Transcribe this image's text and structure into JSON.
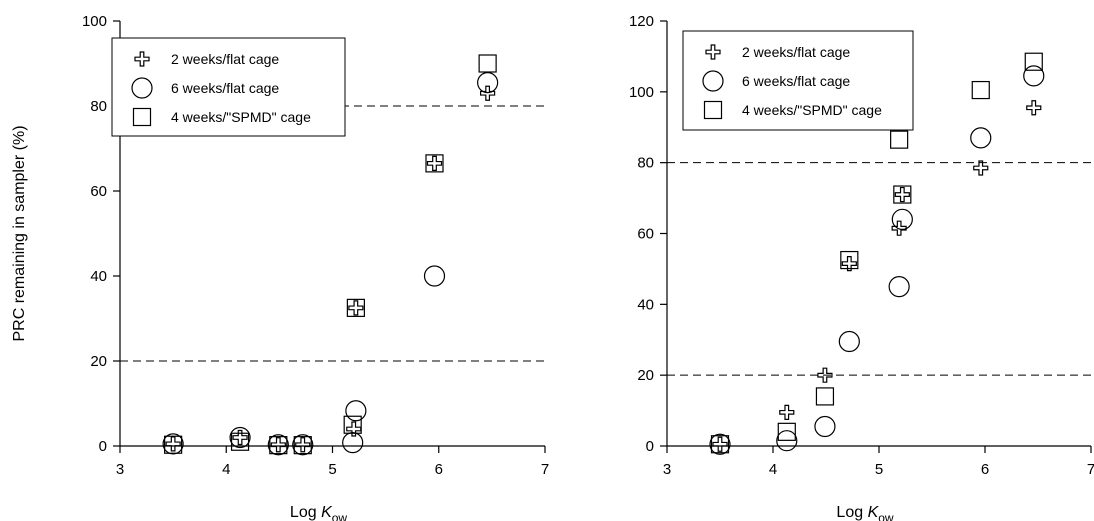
{
  "chart_data": [
    {
      "type": "scatter",
      "panel": "left",
      "xlabel": "Log K",
      "xlabel_sub": "ow",
      "ylabel": "PRC remaining in sampler (%)",
      "xlim": [
        3,
        7
      ],
      "ylim": [
        0,
        100
      ],
      "xticks": [
        3,
        4,
        5,
        6,
        7
      ],
      "yticks": [
        0,
        20,
        40,
        60,
        80,
        100
      ],
      "reference_lines": [
        20,
        80
      ],
      "legend_position": "top-left",
      "series": [
        {
          "name": "2 weeks/flat cage",
          "marker": "cross",
          "points": [
            [
              3.5,
              0.5
            ],
            [
              4.13,
              2
            ],
            [
              4.49,
              0.3
            ],
            [
              4.72,
              0.3
            ],
            [
              5.2,
              4
            ],
            [
              5.22,
              32.5
            ],
            [
              5.96,
              66.5
            ],
            [
              6.46,
              83
            ]
          ]
        },
        {
          "name": "6 weeks/flat cage",
          "marker": "circle",
          "points": [
            [
              3.5,
              0.5
            ],
            [
              4.13,
              2
            ],
            [
              4.49,
              0.3
            ],
            [
              4.72,
              0.3
            ],
            [
              5.19,
              0.8
            ],
            [
              5.22,
              8.3
            ],
            [
              5.96,
              40
            ],
            [
              6.46,
              85.5
            ]
          ]
        },
        {
          "name": "4 weeks/\"SPMD\" cage",
          "marker": "square",
          "points": [
            [
              3.5,
              0.3
            ],
            [
              4.13,
              1
            ],
            [
              4.49,
              0.2
            ],
            [
              4.72,
              0.2
            ],
            [
              5.19,
              5
            ],
            [
              5.22,
              32.5
            ],
            [
              5.96,
              66.5
            ],
            [
              6.46,
              90
            ]
          ]
        }
      ]
    },
    {
      "type": "scatter",
      "panel": "right",
      "xlabel": "Log K",
      "xlabel_sub": "ow",
      "ylabel": "",
      "xlim": [
        3,
        7
      ],
      "ylim": [
        0,
        120
      ],
      "xticks": [
        3,
        4,
        5,
        6,
        7
      ],
      "yticks": [
        0,
        20,
        40,
        60,
        80,
        100,
        120
      ],
      "reference_lines": [
        20,
        80
      ],
      "legend_position": "top-left",
      "series": [
        {
          "name": "2 weeks/flat cage",
          "marker": "cross",
          "points": [
            [
              3.5,
              0.5
            ],
            [
              4.13,
              9.5
            ],
            [
              4.49,
              20
            ],
            [
              4.72,
              51.5
            ],
            [
              5.19,
              61.5
            ],
            [
              5.22,
              71
            ],
            [
              5.96,
              78.5
            ],
            [
              6.46,
              95.5
            ]
          ]
        },
        {
          "name": "6 weeks/flat cage",
          "marker": "circle",
          "points": [
            [
              3.5,
              0.5
            ],
            [
              4.13,
              1.5
            ],
            [
              4.49,
              5.5
            ],
            [
              4.72,
              29.5
            ],
            [
              5.19,
              45
            ],
            [
              5.22,
              64
            ],
            [
              5.96,
              87
            ],
            [
              6.46,
              104.5
            ]
          ]
        },
        {
          "name": "4 weeks/\"SPMD\" cage",
          "marker": "square",
          "points": [
            [
              3.5,
              0.5
            ],
            [
              4.13,
              4
            ],
            [
              4.49,
              14
            ],
            [
              4.72,
              52.5
            ],
            [
              5.19,
              86.5
            ],
            [
              5.22,
              71
            ],
            [
              5.96,
              100.5
            ],
            [
              6.46,
              108.5
            ]
          ]
        }
      ]
    }
  ]
}
